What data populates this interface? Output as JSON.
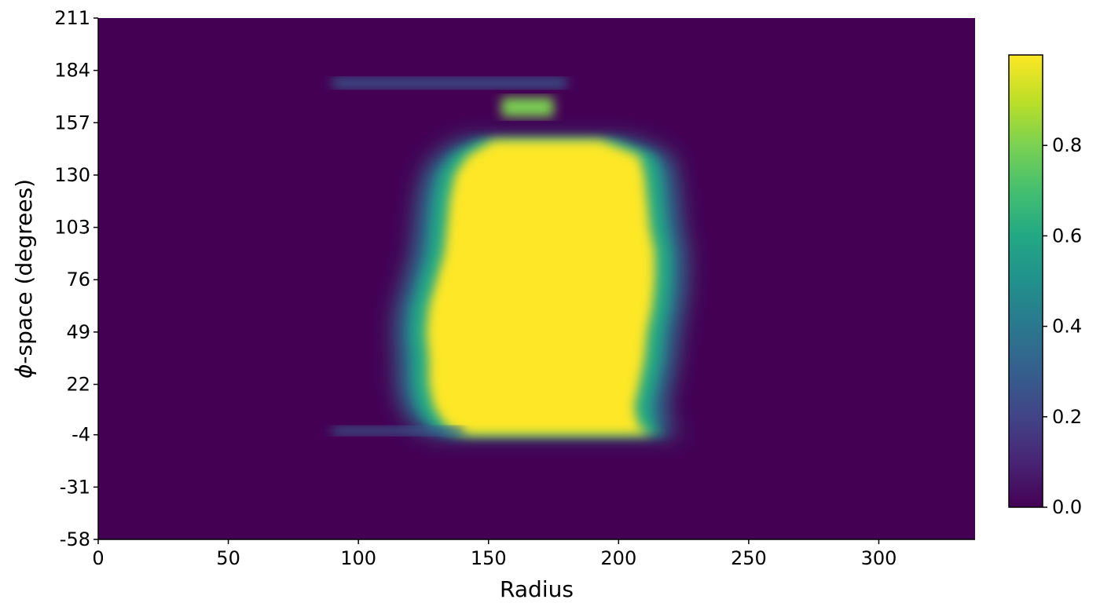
{
  "chart_data": {
    "type": "heatmap",
    "title": "",
    "xlabel": "Radius",
    "ylabel_symbol": "ϕ",
    "ylabel_rest": "-space (degrees)",
    "xlim": [
      0,
      337
    ],
    "ylim": [
      -58,
      211
    ],
    "x_ticks": [
      0,
      50,
      100,
      150,
      200,
      250,
      300
    ],
    "x_tick_labels": [
      "0",
      "50",
      "100",
      "150",
      "200",
      "250",
      "300"
    ],
    "y_ticks": [
      211,
      184,
      157,
      130,
      103,
      76,
      49,
      22,
      -4,
      -31,
      -58
    ],
    "y_tick_labels": [
      "211",
      "184",
      "157",
      "130",
      "103",
      "76",
      "49",
      "22",
      "-4",
      "-31",
      "-58"
    ],
    "colormap": "viridis",
    "background_color": "#440154",
    "colorbar": {
      "range": [
        0,
        1
      ],
      "ticks": [
        0.0,
        0.2,
        0.4,
        0.6,
        0.8
      ],
      "tick_labels": [
        "0.0",
        "0.2",
        "0.4",
        "0.6",
        "0.8"
      ]
    },
    "grid": false,
    "region_profile": {
      "y_values": [
        -4,
        0,
        10,
        22,
        35,
        49,
        62,
        76,
        90,
        103,
        117,
        130,
        140,
        148
      ],
      "left_edge_radius": [
        140,
        132,
        127,
        125,
        125,
        124,
        125,
        128,
        131,
        132,
        133,
        135,
        140,
        150
      ],
      "right_edge_radius": [
        215,
        210,
        208,
        210,
        212,
        213,
        215,
        216,
        216,
        214,
        213,
        212,
        210,
        195
      ],
      "value_inside": 1.0
    },
    "secondary_features": [
      {
        "description_level": 0.75,
        "x_range": [
          155,
          175
        ],
        "y_range": [
          160,
          170
        ]
      },
      {
        "description_level": 0.3,
        "x_range": [
          90,
          180
        ],
        "y_range": [
          175,
          180
        ]
      },
      {
        "description_level": 0.25,
        "x_range": [
          90,
          140
        ],
        "y_range": [
          -4,
          0
        ]
      }
    ]
  }
}
